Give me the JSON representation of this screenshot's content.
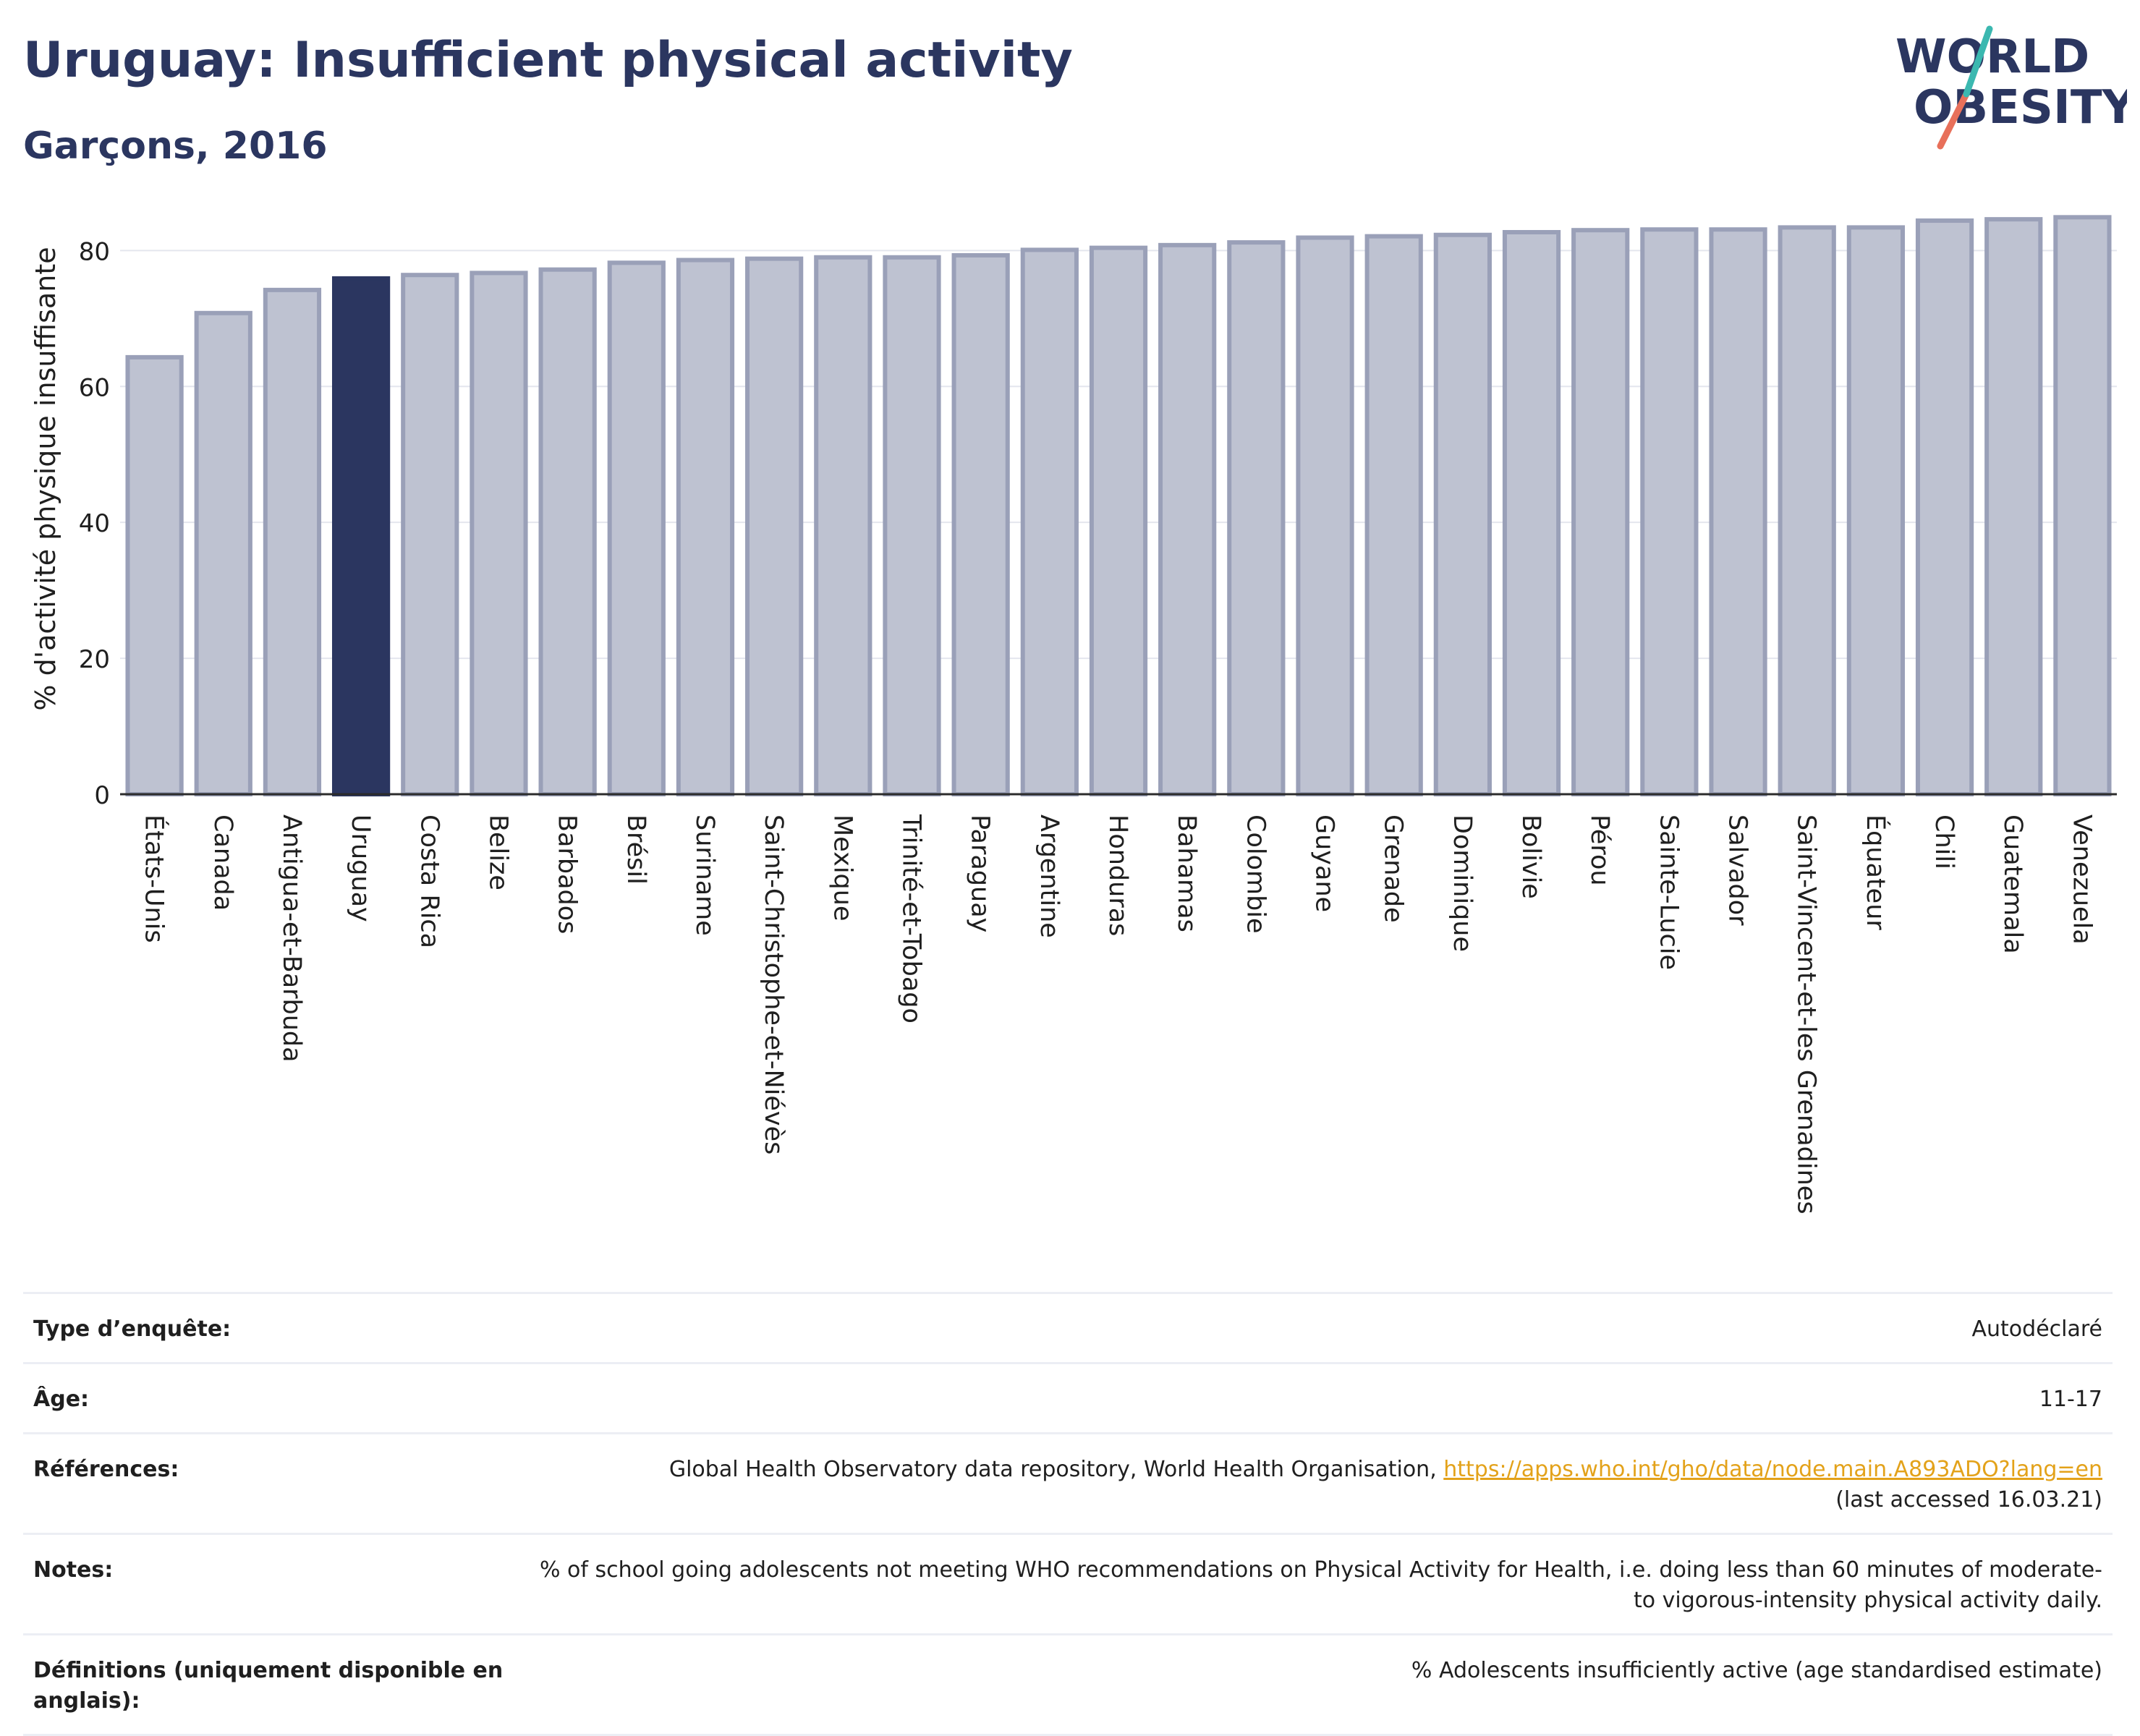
{
  "header": {
    "title": "Uruguay: Insufficient physical activity",
    "subtitle": "Garçons, 2016",
    "logo_line1": "WORLD",
    "logo_line2": "OBESITY"
  },
  "colors": {
    "title": "#2b3660",
    "bar": "#bec2d1",
    "bar_border": "#9aa0b8",
    "highlight": "#2b3660",
    "link": "#e3a21a",
    "logo_teal": "#3bb8b0",
    "logo_red": "#e8705a"
  },
  "chart_data": {
    "type": "bar",
    "ylabel": "% d'activité physique insuffisante",
    "xlabel": "",
    "ylim": [
      0,
      86
    ],
    "yticks": [
      0,
      20,
      40,
      60,
      80
    ],
    "grid": true,
    "highlight": "Uruguay",
    "categories": [
      "États-Unis",
      "Canada",
      "Antigua-et-Barbuda",
      "Uruguay",
      "Costa Rica",
      "Belize",
      "Barbados",
      "Brésil",
      "Suriname",
      "Saint-Christophe-et-Niévès",
      "Mexique",
      "Trinité-et-Tobago",
      "Paraguay",
      "Argentine",
      "Honduras",
      "Bahamas",
      "Colombie",
      "Guyane",
      "Grenade",
      "Dominique",
      "Bolivie",
      "Pérou",
      "Sainte-Lucie",
      "Salvador",
      "Saint-Vincent-et-les Grenadines",
      "Équateur",
      "Chili",
      "Guatemala",
      "Venezuela"
    ],
    "values": [
      64.3,
      70.8,
      74.2,
      75.9,
      76.4,
      76.7,
      77.2,
      78.2,
      78.6,
      78.8,
      79.0,
      79.0,
      79.3,
      80.1,
      80.4,
      80.8,
      81.2,
      81.9,
      82.1,
      82.3,
      82.7,
      83.0,
      83.1,
      83.1,
      83.4,
      83.4,
      84.4,
      84.6,
      84.9
    ]
  },
  "info": {
    "survey_label": "Type d’enquête:",
    "survey_value": "Autodéclaré",
    "age_label": "Âge:",
    "age_value": "11-17",
    "refs_label": "Références:",
    "refs_text": "Global Health Observatory data repository, World Health Organisation, ",
    "refs_link": "https://apps.who.int/gho/data/node.main.A893ADO?lang=en",
    "refs_access": "(last accessed 16.03.21)",
    "notes_label": "Notes:",
    "notes_value": "% of school going adolescents not meeting WHO recommendations on Physical Activity for Health, i.e. doing less than 60 minutes of moderate- to vigorous-intensity physical activity daily.",
    "defs_label": "Définitions (uniquement disponible en anglais):",
    "defs_value": "% Adolescents insufficiently active (age standardised estimate)"
  }
}
